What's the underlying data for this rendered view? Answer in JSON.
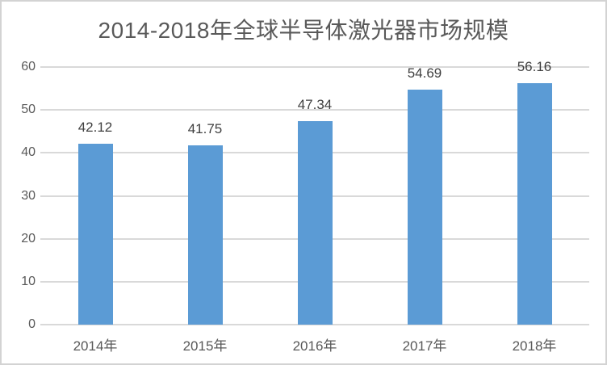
{
  "window": {
    "background": "#ffffff",
    "border_color": "#d3d3d3"
  },
  "chart_data": {
    "type": "bar",
    "title": "2014-2018年全球半导体激光器市场规模",
    "categories": [
      "2014年",
      "2015年",
      "2016年",
      "2017年",
      "2018年"
    ],
    "values": [
      42.12,
      41.75,
      47.34,
      54.69,
      56.16
    ],
    "data_labels": [
      "42.12",
      "41.75",
      "47.34",
      "54.69",
      "56.16"
    ],
    "xlabel": "",
    "ylabel": "",
    "ylim": [
      0,
      60
    ],
    "yticks": [
      0,
      10,
      20,
      30,
      40,
      50,
      60
    ],
    "grid": true,
    "legend": "none",
    "bar_color": "#5b9bd5",
    "gridline_color": "#d9d9d9",
    "title_color": "#595959",
    "tick_label_color": "#595959",
    "data_label_color": "#404040"
  }
}
